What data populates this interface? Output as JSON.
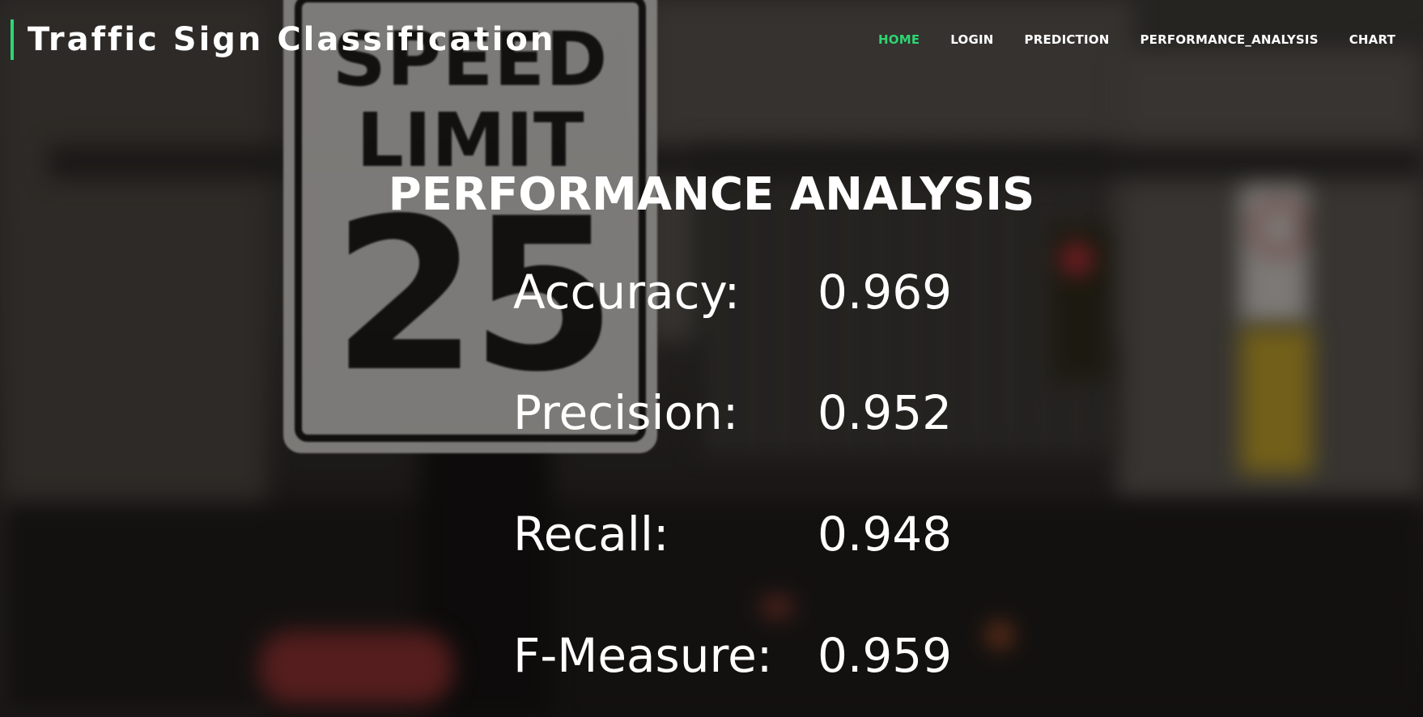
{
  "header": {
    "brand": "Traffic Sign Classification",
    "accent_color": "#2ed573",
    "nav": [
      {
        "label": "HOME",
        "active": true
      },
      {
        "label": "LOGIN",
        "active": false
      },
      {
        "label": "PREDICTION",
        "active": false
      },
      {
        "label": "PERFORMANCE_ANALYSIS",
        "active": false
      },
      {
        "label": "CHART",
        "active": false
      }
    ]
  },
  "background": {
    "sign_line1": "SPEED",
    "sign_line2": "LIMIT",
    "sign_number": "25"
  },
  "main": {
    "title": "PERFORMANCE ANALYSIS",
    "metrics": [
      {
        "label": "Accuracy:",
        "value": "0.969"
      },
      {
        "label": "Precision:",
        "value": "0.952"
      },
      {
        "label": "Recall:",
        "value": "0.948"
      },
      {
        "label": "F-Measure:",
        "value": "0.959"
      }
    ]
  }
}
